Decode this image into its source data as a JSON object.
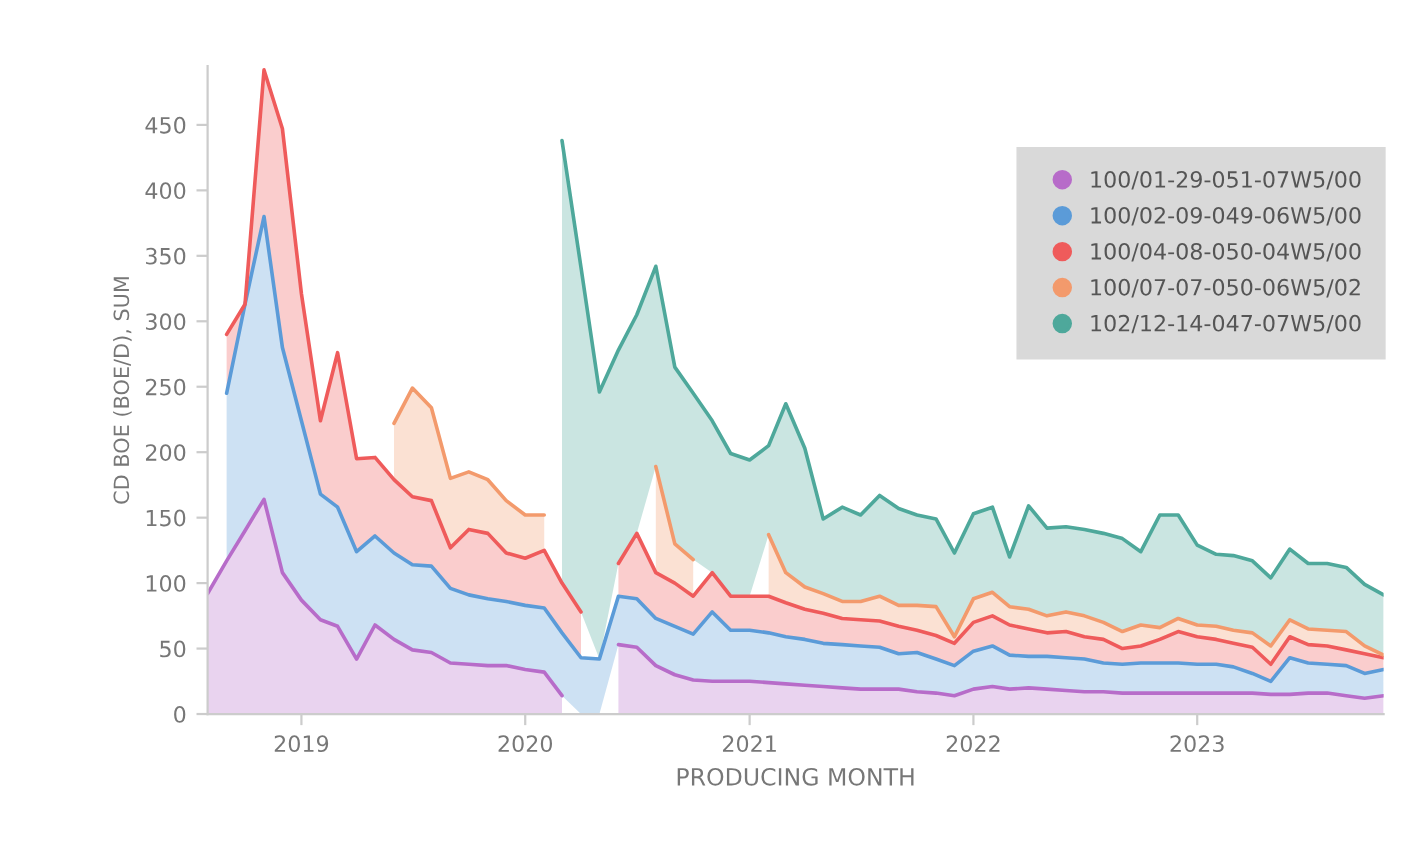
{
  "chart_data": {
    "type": "area",
    "stacked": true,
    "xlabel": "PRODUCING MONTH",
    "ylabel": "CD BOE (BOE/D), SUM",
    "x": [
      "2018-08",
      "2018-09",
      "2018-10",
      "2018-11",
      "2018-12",
      "2019-01",
      "2019-02",
      "2019-03",
      "2019-04",
      "2019-05",
      "2019-06",
      "2019-07",
      "2019-08",
      "2019-09",
      "2019-10",
      "2019-11",
      "2019-12",
      "2020-01",
      "2020-02",
      "2020-03",
      "2020-04",
      "2020-05",
      "2020-06",
      "2020-07",
      "2020-08",
      "2020-09",
      "2020-10",
      "2020-11",
      "2020-12",
      "2021-01",
      "2021-02",
      "2021-03",
      "2021-04",
      "2021-05",
      "2021-06",
      "2021-07",
      "2021-08",
      "2021-09",
      "2021-10",
      "2021-11",
      "2021-12",
      "2022-01",
      "2022-02",
      "2022-03",
      "2022-04",
      "2022-05",
      "2022-06",
      "2022-07",
      "2022-08",
      "2022-09",
      "2022-10",
      "2022-11",
      "2022-12",
      "2023-01",
      "2023-02",
      "2023-03",
      "2023-04",
      "2023-05",
      "2023-06",
      "2023-07",
      "2023-08",
      "2023-09",
      "2023-10",
      "2023-11"
    ],
    "series": [
      {
        "name": "100/01-29-051-07W5/00",
        "color": "#b76cc9",
        "values": [
          92,
          117,
          140,
          164,
          108,
          87,
          72,
          67,
          42,
          68,
          57,
          49,
          47,
          39,
          38,
          37,
          37,
          34,
          32,
          14,
          null,
          null,
          53,
          51,
          37,
          30,
          26,
          25,
          25,
          25,
          24,
          23,
          22,
          21,
          20,
          19,
          19,
          19,
          17,
          16,
          14,
          19,
          21,
          19,
          20,
          19,
          18,
          17,
          17,
          16,
          16,
          16,
          16,
          16,
          16,
          16,
          16,
          15,
          15,
          16,
          16,
          14,
          12,
          14
        ]
      },
      {
        "name": "100/02-09-049-06W5/00",
        "color": "#5b9bd8",
        "values": [
          null,
          128,
          173,
          216,
          172,
          137,
          96,
          91,
          82,
          68,
          66,
          65,
          66,
          57,
          53,
          51,
          49,
          49,
          49,
          48,
          43,
          42,
          37,
          37,
          36,
          37,
          35,
          53,
          39,
          39,
          38,
          36,
          35,
          33,
          33,
          33,
          32,
          27,
          30,
          26,
          23,
          29,
          31,
          26,
          24,
          25,
          25,
          25,
          22,
          22,
          23,
          23,
          23,
          22,
          22,
          20,
          15,
          10,
          28,
          23,
          22,
          23,
          19,
          20
        ]
      },
      {
        "name": "100/04-08-050-04W5/00",
        "color": "#ef5b5b",
        "values": [
          null,
          45,
          0,
          112,
          167,
          97,
          56,
          118,
          71,
          60,
          56,
          52,
          50,
          31,
          50,
          50,
          37,
          36,
          44,
          38,
          35,
          null,
          25,
          50,
          35,
          33,
          29,
          30,
          26,
          26,
          28,
          26,
          23,
          23,
          20,
          20,
          20,
          21,
          17,
          18,
          17,
          22,
          23,
          23,
          21,
          18,
          20,
          17,
          18,
          12,
          13,
          18,
          24,
          21,
          19,
          18,
          20,
          13,
          16,
          14,
          14,
          12,
          15,
          9
        ]
      },
      {
        "name": "100/07-07-050-06W5/02",
        "color": "#f39a6c",
        "values": [
          null,
          null,
          null,
          null,
          null,
          null,
          null,
          null,
          null,
          null,
          43,
          83,
          71,
          53,
          44,
          41,
          40,
          33,
          27,
          null,
          null,
          null,
          null,
          null,
          81,
          30,
          28,
          null,
          null,
          null,
          47,
          23,
          17,
          15,
          13,
          14,
          19,
          16,
          19,
          22,
          5,
          18,
          18,
          14,
          15,
          13,
          15,
          16,
          13,
          13,
          16,
          9,
          10,
          9,
          10,
          10,
          11,
          14,
          13,
          12,
          12,
          14,
          6,
          2
        ]
      },
      {
        "name": "102/12-14-047-07W5/00",
        "color": "#4ea89b",
        "values": [
          null,
          null,
          null,
          null,
          null,
          null,
          null,
          null,
          null,
          null,
          null,
          null,
          null,
          null,
          null,
          null,
          null,
          null,
          null,
          338,
          263,
          204,
          163,
          167,
          153,
          135,
          127,
          116,
          109,
          104,
          68,
          129,
          106,
          57,
          72,
          66,
          77,
          74,
          69,
          67,
          64,
          65,
          65,
          38,
          79,
          67,
          65,
          66,
          68,
          71,
          56,
          86,
          79,
          61,
          55,
          57,
          55,
          52,
          54,
          50,
          51,
          49,
          47,
          46
        ]
      }
    ],
    "xlim": [
      "2018-08",
      "2023-11"
    ],
    "xticks": [
      "2019",
      "2020",
      "2021",
      "2022",
      "2023"
    ],
    "ylim": [
      0,
      495
    ],
    "yticks": [
      0,
      50,
      100,
      150,
      200,
      250,
      300,
      350,
      400,
      450
    ],
    "grid": false,
    "legend": "top right",
    "line_style": "solid"
  }
}
